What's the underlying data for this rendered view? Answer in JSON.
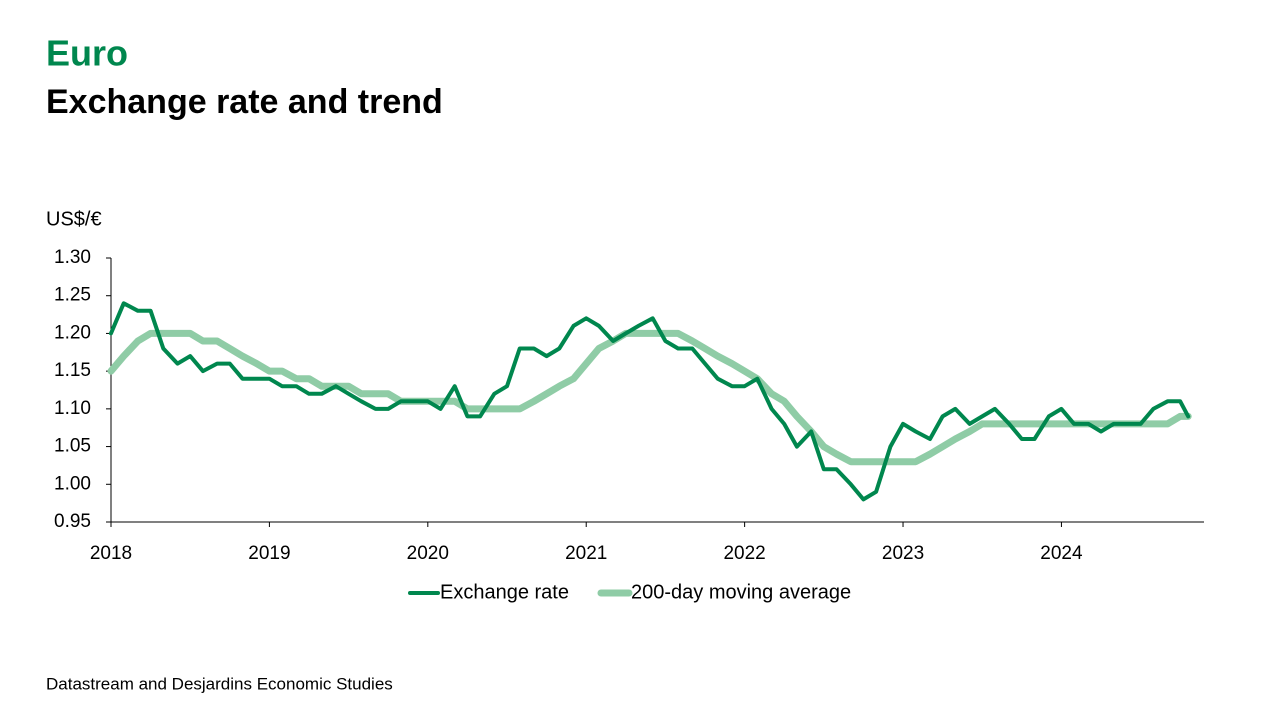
{
  "chart_data": {
    "type": "line",
    "title": "Euro",
    "subtitle": "Exchange rate and trend",
    "y_axis_label": "US$/€",
    "source": "Datastream and Desjardins Economic Studies",
    "x": [
      2018,
      2018.08,
      2018.17,
      2018.25,
      2018.33,
      2018.42,
      2018.5,
      2018.58,
      2018.67,
      2018.75,
      2018.83,
      2018.92,
      2019,
      2019.08,
      2019.17,
      2019.25,
      2019.33,
      2019.42,
      2019.5,
      2019.58,
      2019.67,
      2019.75,
      2019.83,
      2019.92,
      2020,
      2020.08,
      2020.17,
      2020.25,
      2020.33,
      2020.42,
      2020.5,
      2020.58,
      2020.67,
      2020.75,
      2020.83,
      2020.92,
      2021,
      2021.08,
      2021.17,
      2021.25,
      2021.33,
      2021.42,
      2021.5,
      2021.58,
      2021.67,
      2021.75,
      2021.83,
      2021.92,
      2022,
      2022.08,
      2022.17,
      2022.25,
      2022.33,
      2022.42,
      2022.5,
      2022.58,
      2022.67,
      2022.75,
      2022.83,
      2022.92,
      2023,
      2023.08,
      2023.17,
      2023.25,
      2023.33,
      2023.42,
      2023.5,
      2023.58,
      2023.67,
      2023.75,
      2023.83,
      2023.92,
      2024,
      2024.08,
      2024.17,
      2024.25,
      2024.33,
      2024.42,
      2024.5,
      2024.58,
      2024.67,
      2024.75,
      2024.8
    ],
    "series": [
      {
        "name": "Exchange rate",
        "color": "#00874e",
        "width": 4,
        "values": [
          1.2,
          1.24,
          1.23,
          1.23,
          1.18,
          1.16,
          1.17,
          1.15,
          1.16,
          1.16,
          1.14,
          1.14,
          1.14,
          1.13,
          1.13,
          1.12,
          1.12,
          1.13,
          1.12,
          1.11,
          1.1,
          1.1,
          1.11,
          1.11,
          1.11,
          1.1,
          1.13,
          1.09,
          1.09,
          1.12,
          1.13,
          1.18,
          1.18,
          1.17,
          1.18,
          1.21,
          1.22,
          1.21,
          1.19,
          1.2,
          1.21,
          1.22,
          1.19,
          1.18,
          1.18,
          1.16,
          1.14,
          1.13,
          1.13,
          1.14,
          1.1,
          1.08,
          1.05,
          1.07,
          1.02,
          1.02,
          1.0,
          0.98,
          0.99,
          1.05,
          1.08,
          1.07,
          1.06,
          1.09,
          1.1,
          1.08,
          1.09,
          1.1,
          1.08,
          1.06,
          1.06,
          1.09,
          1.1,
          1.08,
          1.08,
          1.07,
          1.08,
          1.08,
          1.08,
          1.1,
          1.11,
          1.11,
          1.09
        ]
      },
      {
        "name": "200-day moving average",
        "color": "#8fcca6",
        "width": 7,
        "values": [
          1.15,
          1.17,
          1.19,
          1.2,
          1.2,
          1.2,
          1.2,
          1.19,
          1.19,
          1.18,
          1.17,
          1.16,
          1.15,
          1.15,
          1.14,
          1.14,
          1.13,
          1.13,
          1.13,
          1.12,
          1.12,
          1.12,
          1.11,
          1.11,
          1.11,
          1.11,
          1.11,
          1.1,
          1.1,
          1.1,
          1.1,
          1.1,
          1.11,
          1.12,
          1.13,
          1.14,
          1.16,
          1.18,
          1.19,
          1.2,
          1.2,
          1.2,
          1.2,
          1.2,
          1.19,
          1.18,
          1.17,
          1.16,
          1.15,
          1.14,
          1.12,
          1.11,
          1.09,
          1.07,
          1.05,
          1.04,
          1.03,
          1.03,
          1.03,
          1.03,
          1.03,
          1.03,
          1.04,
          1.05,
          1.06,
          1.07,
          1.08,
          1.08,
          1.08,
          1.08,
          1.08,
          1.08,
          1.08,
          1.08,
          1.08,
          1.08,
          1.08,
          1.08,
          1.08,
          1.08,
          1.08,
          1.09,
          1.09
        ]
      }
    ],
    "xlim": [
      2018,
      2024.9
    ],
    "xticks": [
      2018,
      2019,
      2020,
      2021,
      2022,
      2023,
      2024
    ],
    "ylim": [
      0.95,
      1.3
    ],
    "yticks": [
      {
        "value": 0.95,
        "label": "0.95"
      },
      {
        "value": 1.0,
        "label": "1.00"
      },
      {
        "value": 1.05,
        "label": "1.05"
      },
      {
        "value": 1.1,
        "label": "1.10"
      },
      {
        "value": 1.15,
        "label": "1.15"
      },
      {
        "value": 1.2,
        "label": "1.20"
      },
      {
        "value": 1.25,
        "label": "1.25"
      },
      {
        "value": 1.3,
        "label": "1.30"
      }
    ],
    "legend": "bottom"
  }
}
